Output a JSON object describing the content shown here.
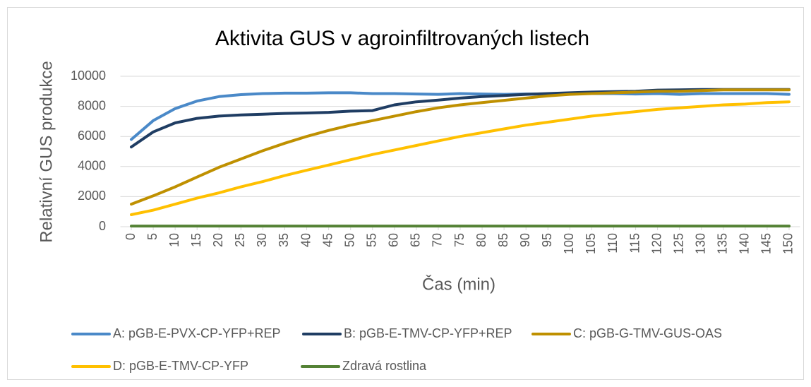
{
  "chart_data": {
    "type": "line",
    "title": "Aktivita GUS v agroinfiltrovaných listech",
    "x_label": "Čas (min)",
    "y_label": "Relativní GUS produkce",
    "x": [
      0,
      5,
      10,
      15,
      20,
      25,
      30,
      35,
      40,
      45,
      50,
      55,
      60,
      65,
      70,
      75,
      80,
      85,
      90,
      95,
      100,
      105,
      110,
      115,
      120,
      125,
      130,
      135,
      140,
      145,
      150
    ],
    "xlim": [
      -2.5,
      152.5
    ],
    "ylim": [
      0,
      10000
    ],
    "yticks": [
      0,
      2000,
      4000,
      6000,
      8000,
      10000
    ],
    "grid": true,
    "legend": "bottom",
    "series": [
      {
        "name": "A: pGB-E-PVX-CP-YFP+REP",
        "color": "#4a89c8",
        "values": [
          5800,
          7050,
          7850,
          8350,
          8650,
          8780,
          8850,
          8880,
          8880,
          8900,
          8900,
          8850,
          8850,
          8820,
          8800,
          8850,
          8820,
          8800,
          8820,
          8820,
          8850,
          8850,
          8850,
          8820,
          8850,
          8800,
          8850,
          8850,
          8850,
          8850,
          8800
        ]
      },
      {
        "name": "B: pGB-E-TMV-CP-YFP+REP",
        "color": "#1f3d63",
        "values": [
          5300,
          6300,
          6900,
          7200,
          7350,
          7430,
          7480,
          7530,
          7560,
          7600,
          7680,
          7720,
          8100,
          8300,
          8420,
          8550,
          8650,
          8720,
          8800,
          8850,
          8900,
          8950,
          8980,
          9000,
          9080,
          9100,
          9120,
          9120,
          9120,
          9120,
          9120
        ]
      },
      {
        "name": "C: pGB-G-TMV-GUS-OAS",
        "color": "#bf9000",
        "values": [
          1500,
          2050,
          2650,
          3300,
          3950,
          4500,
          5050,
          5550,
          6000,
          6400,
          6750,
          7050,
          7350,
          7650,
          7900,
          8100,
          8250,
          8400,
          8550,
          8700,
          8800,
          8850,
          8900,
          8950,
          9000,
          9000,
          9050,
          9100,
          9100,
          9100,
          9100
        ]
      },
      {
        "name": "D: pGB-E-TMV-CP-YFP",
        "color": "#ffc000",
        "values": [
          800,
          1100,
          1500,
          1900,
          2250,
          2650,
          3000,
          3400,
          3750,
          4100,
          4450,
          4800,
          5100,
          5400,
          5700,
          6000,
          6250,
          6500,
          6750,
          6950,
          7150,
          7350,
          7500,
          7650,
          7800,
          7900,
          8000,
          8100,
          8150,
          8250,
          8300
        ]
      },
      {
        "name": "Zdravá rostlina",
        "color": "#548235",
        "values": [
          40,
          40,
          40,
          40,
          40,
          40,
          40,
          40,
          40,
          40,
          40,
          40,
          40,
          40,
          40,
          40,
          40,
          40,
          40,
          40,
          40,
          40,
          40,
          40,
          40,
          40,
          40,
          40,
          40,
          40,
          40
        ]
      }
    ]
  }
}
